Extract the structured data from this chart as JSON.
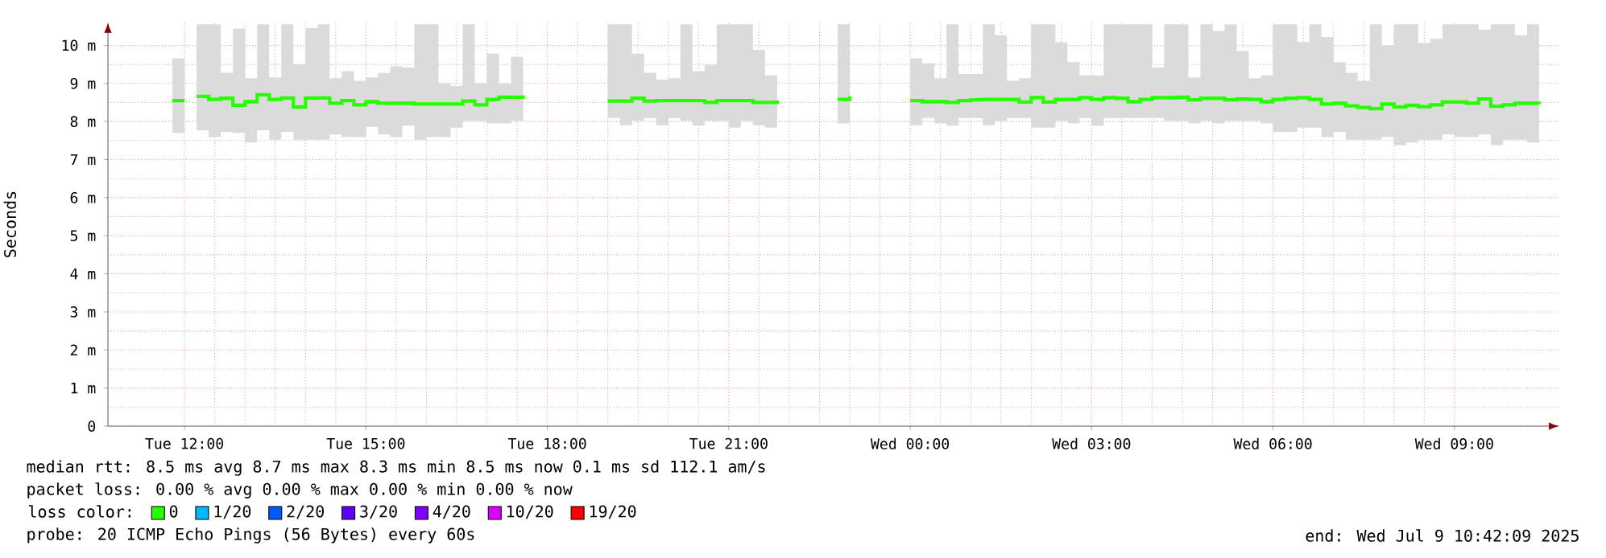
{
  "chart_data": {
    "type": "step",
    "ylabel": "Seconds",
    "legend_title": "loss color:",
    "legend": "bottom",
    "grid": true,
    "xlim": [
      "2025-07-08T10:44",
      "2025-07-09T10:44"
    ],
    "xticks": [
      {
        "value": "2025-07-08T12:00",
        "label": "Tue 12:00"
      },
      {
        "value": "2025-07-08T15:00",
        "label": "Tue 15:00"
      },
      {
        "value": "2025-07-08T18:00",
        "label": "Tue 18:00"
      },
      {
        "value": "2025-07-08T21:00",
        "label": "Tue 21:00"
      },
      {
        "value": "2025-07-09T00:00",
        "label": "Wed 00:00"
      },
      {
        "value": "2025-07-09T03:00",
        "label": "Wed 03:00"
      },
      {
        "value": "2025-07-09T06:00",
        "label": "Wed 06:00"
      },
      {
        "value": "2025-07-09T09:00",
        "label": "Wed 09:00"
      }
    ],
    "ylim": [
      0,
      10.6
    ],
    "yticks": [
      0,
      {
        "value": 1,
        "label": "1 m"
      },
      {
        "value": 2,
        "label": "2 m"
      },
      {
        "value": 3,
        "label": "3 m"
      },
      {
        "value": 4,
        "label": "4 m"
      },
      {
        "value": 5,
        "label": "5 m"
      },
      {
        "value": 6,
        "label": "6 m"
      },
      {
        "value": 7,
        "label": "7 m"
      },
      {
        "value": 8,
        "label": "8 m"
      },
      {
        "value": 9,
        "label": "9 m"
      },
      {
        "value": 10,
        "label": "10 m"
      }
    ],
    "x": [
      "2025-07-08T11:48",
      "2025-07-08T12:00",
      "2025-07-08T12:12",
      "2025-07-08T12:24",
      "2025-07-08T12:36",
      "2025-07-08T12:48",
      "2025-07-08T13:00",
      "2025-07-08T13:12",
      "2025-07-08T13:24",
      "2025-07-08T13:36",
      "2025-07-08T13:48",
      "2025-07-08T14:00",
      "2025-07-08T14:12",
      "2025-07-08T14:24",
      "2025-07-08T14:36",
      "2025-07-08T14:48",
      "2025-07-08T15:00",
      "2025-07-08T15:12",
      "2025-07-08T15:24",
      "2025-07-08T15:36",
      "2025-07-08T15:48",
      "2025-07-08T16:00",
      "2025-07-08T16:12",
      "2025-07-08T16:24",
      "2025-07-08T16:36",
      "2025-07-08T16:48",
      "2025-07-08T17:00",
      "2025-07-08T17:12",
      "2025-07-08T17:24",
      "2025-07-08T17:36",
      "2025-07-08T17:48",
      "2025-07-08T18:00",
      "2025-07-08T18:12",
      "2025-07-08T18:24",
      "2025-07-08T18:36",
      "2025-07-08T18:48",
      "2025-07-08T19:00",
      "2025-07-08T19:12",
      "2025-07-08T19:24",
      "2025-07-08T19:36",
      "2025-07-08T19:48",
      "2025-07-08T20:00",
      "2025-07-08T20:12",
      "2025-07-08T20:24",
      "2025-07-08T20:36",
      "2025-07-08T20:48",
      "2025-07-08T21:00",
      "2025-07-08T21:12",
      "2025-07-08T21:24",
      "2025-07-08T21:36",
      "2025-07-08T21:48",
      "2025-07-08T22:00",
      "2025-07-08T22:12",
      "2025-07-08T22:24",
      "2025-07-08T22:36",
      "2025-07-08T22:48",
      "2025-07-08T23:00",
      "2025-07-08T23:12",
      "2025-07-08T23:24",
      "2025-07-08T23:36",
      "2025-07-08T23:48",
      "2025-07-09T00:00",
      "2025-07-09T00:12",
      "2025-07-09T00:24",
      "2025-07-09T00:36",
      "2025-07-09T00:48",
      "2025-07-09T01:00",
      "2025-07-09T01:12",
      "2025-07-09T01:24",
      "2025-07-09T01:36",
      "2025-07-09T01:48",
      "2025-07-09T02:00",
      "2025-07-09T02:12",
      "2025-07-09T02:24",
      "2025-07-09T02:36",
      "2025-07-09T02:48",
      "2025-07-09T03:00",
      "2025-07-09T03:12",
      "2025-07-09T03:24",
      "2025-07-09T03:36",
      "2025-07-09T03:48",
      "2025-07-09T04:00",
      "2025-07-09T04:12",
      "2025-07-09T04:24",
      "2025-07-09T04:36",
      "2025-07-09T04:48",
      "2025-07-09T05:00",
      "2025-07-09T05:12",
      "2025-07-09T05:24",
      "2025-07-09T05:36",
      "2025-07-09T05:48",
      "2025-07-09T06:00",
      "2025-07-09T06:12",
      "2025-07-09T06:24",
      "2025-07-09T06:36",
      "2025-07-09T06:48",
      "2025-07-09T07:00",
      "2025-07-09T07:12",
      "2025-07-09T07:24",
      "2025-07-09T07:36",
      "2025-07-09T07:48",
      "2025-07-09T08:00",
      "2025-07-09T08:12",
      "2025-07-09T08:24",
      "2025-07-09T08:36",
      "2025-07-09T08:48",
      "2025-07-09T09:00",
      "2025-07-09T09:12",
      "2025-07-09T09:24",
      "2025-07-09T09:36",
      "2025-07-09T09:48",
      "2025-07-09T10:00",
      "2025-07-09T10:12",
      "2025-07-09T10:24"
    ],
    "series": [
      {
        "name": "0",
        "color": "#26ff00",
        "values": [
          8.55,
          null,
          8.66,
          8.58,
          8.61,
          8.43,
          8.52,
          8.7,
          8.58,
          8.62,
          8.38,
          8.62,
          8.62,
          8.48,
          8.55,
          8.44,
          8.52,
          8.48,
          8.48,
          8.48,
          8.46,
          8.46,
          8.46,
          8.46,
          8.54,
          8.44,
          8.58,
          8.64,
          8.64,
          8.6,
          null,
          null,
          null,
          null,
          null,
          null,
          8.54,
          8.54,
          8.61,
          8.54,
          8.55,
          8.55,
          8.55,
          8.55,
          8.5,
          8.55,
          8.55,
          8.55,
          8.5,
          8.5,
          8.55,
          null,
          null,
          null,
          null,
          8.58,
          8.66,
          null,
          null,
          null,
          null,
          8.55,
          8.52,
          8.52,
          8.5,
          8.55,
          8.57,
          8.58,
          8.58,
          8.58,
          8.51,
          8.63,
          8.51,
          8.58,
          8.58,
          8.63,
          8.58,
          8.63,
          8.61,
          8.52,
          8.58,
          8.63,
          8.63,
          8.64,
          8.57,
          8.61,
          8.61,
          8.57,
          8.59,
          8.58,
          8.52,
          8.58,
          8.61,
          8.63,
          8.58,
          8.46,
          8.48,
          8.41,
          8.37,
          8.34,
          8.46,
          8.38,
          8.43,
          8.39,
          8.44,
          8.51,
          8.51,
          8.48,
          8.59,
          8.4,
          8.44,
          8.48,
          8.48,
          8.46
        ],
        "upper": [
          9.66,
          null,
          10.55,
          10.55,
          9.28,
          10.44,
          9.14,
          10.55,
          9.16,
          10.55,
          9.5,
          10.45,
          10.55,
          9.14,
          9.32,
          9.07,
          9.16,
          9.28,
          9.45,
          9.42,
          10.55,
          10.55,
          9.0,
          8.93,
          10.55,
          9.0,
          9.78,
          9.0,
          9.7,
          9.28,
          null,
          null,
          null,
          null,
          null,
          null,
          10.55,
          10.55,
          9.78,
          9.28,
          9.1,
          9.14,
          10.55,
          9.32,
          9.49,
          10.55,
          10.55,
          10.55,
          9.88,
          9.21,
          10.21,
          null,
          null,
          null,
          null,
          10.55,
          9.11,
          null,
          null,
          null,
          null,
          9.66,
          9.53,
          9.14,
          10.55,
          9.25,
          9.25,
          10.55,
          10.27,
          9.07,
          9.14,
          10.55,
          10.55,
          10.08,
          9.56,
          9.21,
          9.21,
          10.55,
          10.55,
          10.55,
          10.55,
          9.42,
          10.55,
          10.55,
          9.16,
          10.55,
          10.38,
          10.55,
          9.85,
          9.14,
          9.21,
          10.55,
          10.55,
          10.09,
          10.55,
          10.22,
          9.56,
          9.28,
          9.07,
          10.55,
          10.0,
          10.55,
          10.55,
          10.06,
          10.17,
          10.55,
          10.55,
          10.55,
          10.41,
          10.55,
          10.55,
          10.27,
          10.55,
          10.55
        ],
        "lower": [
          7.7,
          null,
          7.77,
          7.59,
          7.73,
          7.7,
          7.45,
          7.77,
          7.52,
          7.73,
          7.52,
          7.52,
          7.52,
          7.66,
          7.59,
          7.59,
          7.86,
          7.66,
          7.59,
          7.89,
          7.52,
          7.59,
          7.59,
          7.84,
          8.02,
          8.02,
          7.95,
          7.95,
          8.02,
          8.02,
          null,
          null,
          null,
          null,
          null,
          null,
          8.09,
          7.9,
          8.02,
          8.09,
          7.9,
          8.09,
          8.02,
          7.89,
          8.02,
          8.02,
          7.84,
          8.02,
          7.9,
          7.84,
          8.09,
          null,
          null,
          null,
          null,
          7.95,
          8.02,
          null,
          null,
          null,
          null,
          7.9,
          8.09,
          7.95,
          7.89,
          8.09,
          8.09,
          7.9,
          8.02,
          8.09,
          8.09,
          7.84,
          7.84,
          8.02,
          7.95,
          8.09,
          7.89,
          8.09,
          8.09,
          8.09,
          8.09,
          8.09,
          8.02,
          8.02,
          7.95,
          8.02,
          7.95,
          8.02,
          8.02,
          8.02,
          7.95,
          7.73,
          7.73,
          7.84,
          7.84,
          7.59,
          7.73,
          7.52,
          7.52,
          7.52,
          7.59,
          7.38,
          7.45,
          7.52,
          7.52,
          7.66,
          7.59,
          7.59,
          7.66,
          7.38,
          7.52,
          7.52,
          7.45,
          7.38
        ]
      },
      {
        "name": "1/20",
        "color": "#00b8ff",
        "values": [
          null,
          null,
          null,
          null,
          null,
          null,
          null,
          null,
          null,
          null,
          null,
          null,
          null,
          null,
          null,
          null,
          null,
          null,
          null,
          null,
          null,
          null,
          null,
          null,
          null,
          null,
          null,
          null,
          null,
          null,
          null,
          null,
          null,
          null,
          null,
          null,
          null,
          null,
          null,
          null,
          null,
          null,
          null,
          null,
          null,
          null,
          null,
          null,
          null,
          null,
          null,
          null,
          null,
          null,
          null,
          null,
          null,
          null,
          null,
          null,
          null,
          null,
          null,
          null,
          null,
          null,
          null,
          null,
          null,
          null,
          null,
          null,
          null,
          null,
          null,
          null,
          null,
          null,
          null,
          null,
          null,
          null,
          null,
          null,
          null,
          null,
          null,
          null,
          null,
          null,
          null,
          null,
          null,
          null,
          null,
          null,
          null,
          null,
          null,
          null,
          null,
          null,
          null,
          null,
          null,
          null,
          null,
          null,
          null,
          null,
          null,
          null,
          null,
          null
        ]
      },
      {
        "name": "2/20",
        "color": "#0059ff",
        "values": [
          null,
          null,
          null,
          null,
          null,
          null,
          null,
          null,
          null,
          null,
          null,
          null,
          null,
          null,
          null,
          null,
          null,
          null,
          null,
          null,
          null,
          null,
          null,
          null,
          null,
          null,
          null,
          null,
          null,
          null,
          null,
          null,
          null,
          null,
          null,
          null,
          null,
          null,
          null,
          null,
          null,
          null,
          null,
          null,
          null,
          null,
          null,
          null,
          null,
          null,
          null,
          null,
          null,
          null,
          null,
          null,
          null,
          null,
          null,
          null,
          null,
          null,
          null,
          null,
          null,
          null,
          null,
          null,
          null,
          null,
          null,
          null,
          null,
          null,
          null,
          null,
          null,
          null,
          null,
          null,
          null,
          null,
          null,
          null,
          null,
          null,
          null,
          null,
          null,
          null,
          null,
          null,
          null,
          null,
          null,
          null,
          null,
          null,
          null,
          null,
          null,
          null,
          null,
          null,
          null,
          null,
          null,
          null,
          null,
          null,
          null,
          null,
          null,
          null
        ]
      },
      {
        "name": "3/20",
        "color": "#5e00ff",
        "values": [
          null,
          null,
          null,
          null,
          null,
          null,
          null,
          null,
          null,
          null,
          null,
          null,
          null,
          null,
          null,
          null,
          null,
          null,
          null,
          null,
          null,
          null,
          null,
          null,
          null,
          null,
          null,
          null,
          null,
          null,
          null,
          null,
          null,
          null,
          null,
          null,
          null,
          null,
          null,
          null,
          null,
          null,
          null,
          null,
          null,
          null,
          null,
          null,
          null,
          null,
          null,
          null,
          null,
          null,
          null,
          null,
          null,
          null,
          null,
          null,
          null,
          null,
          null,
          null,
          null,
          null,
          null,
          null,
          null,
          null,
          null,
          null,
          null,
          null,
          null,
          null,
          null,
          null,
          null,
          null,
          null,
          null,
          null,
          null,
          null,
          null,
          null,
          null,
          null,
          null,
          null,
          null,
          null,
          null,
          null,
          null,
          null,
          null,
          null,
          null,
          null,
          null,
          null,
          null,
          null,
          null,
          null,
          null,
          null,
          null,
          null,
          null,
          null,
          null
        ]
      },
      {
        "name": "4/20",
        "color": "#7e00ff",
        "values": [
          null,
          null,
          null,
          null,
          null,
          null,
          null,
          null,
          null,
          null,
          null,
          null,
          null,
          null,
          null,
          null,
          null,
          null,
          null,
          null,
          null,
          null,
          null,
          null,
          null,
          null,
          null,
          null,
          null,
          null,
          null,
          null,
          null,
          null,
          null,
          null,
          null,
          null,
          null,
          null,
          null,
          null,
          null,
          null,
          null,
          null,
          null,
          null,
          null,
          null,
          null,
          null,
          null,
          null,
          null,
          null,
          null,
          null,
          null,
          null,
          null,
          null,
          null,
          null,
          null,
          null,
          null,
          null,
          null,
          null,
          null,
          null,
          null,
          null,
          null,
          null,
          null,
          null,
          null,
          null,
          null,
          null,
          null,
          null,
          null,
          null,
          null,
          null,
          null,
          null,
          null,
          null,
          null,
          null,
          null,
          null,
          null,
          null,
          null,
          null,
          null,
          null,
          null,
          null,
          null,
          null,
          null,
          null,
          null,
          null,
          null,
          null,
          null,
          null
        ]
      },
      {
        "name": "10/20",
        "color": "#dd00ff",
        "values": [
          null,
          null,
          null,
          null,
          null,
          null,
          null,
          null,
          null,
          null,
          null,
          null,
          null,
          null,
          null,
          null,
          null,
          null,
          null,
          null,
          null,
          null,
          null,
          null,
          null,
          null,
          null,
          null,
          null,
          null,
          null,
          null,
          null,
          null,
          null,
          null,
          null,
          null,
          null,
          null,
          null,
          null,
          null,
          null,
          null,
          null,
          null,
          null,
          null,
          null,
          null,
          null,
          null,
          null,
          null,
          null,
          null,
          null,
          null,
          null,
          null,
          null,
          null,
          null,
          null,
          null,
          null,
          null,
          null,
          null,
          null,
          null,
          null,
          null,
          null,
          null,
          null,
          null,
          null,
          null,
          null,
          null,
          null,
          null,
          null,
          null,
          null,
          null,
          null,
          null,
          null,
          null,
          null,
          null,
          null,
          null,
          null,
          null,
          null,
          null,
          null,
          null,
          null,
          null,
          null,
          null,
          null,
          null,
          null,
          null,
          null,
          null,
          null,
          null
        ]
      },
      {
        "name": "19/20",
        "color": "#ff0000",
        "values": [
          null,
          null,
          null,
          null,
          null,
          null,
          null,
          null,
          null,
          null,
          null,
          null,
          null,
          null,
          null,
          null,
          null,
          null,
          null,
          null,
          null,
          null,
          null,
          null,
          null,
          null,
          null,
          null,
          null,
          null,
          null,
          null,
          null,
          null,
          null,
          null,
          null,
          null,
          null,
          null,
          null,
          null,
          null,
          null,
          null,
          null,
          null,
          null,
          null,
          null,
          null,
          null,
          null,
          null,
          null,
          null,
          null,
          null,
          null,
          null,
          null,
          null,
          null,
          null,
          null,
          null,
          null,
          null,
          null,
          null,
          null,
          null,
          null,
          null,
          null,
          null,
          null,
          null,
          null,
          null,
          null,
          null,
          null,
          null,
          null,
          null,
          null,
          null,
          null,
          null,
          null,
          null,
          null,
          null,
          null,
          null,
          null,
          null,
          null,
          null,
          null,
          null,
          null,
          null,
          null,
          null,
          null,
          null,
          null,
          null,
          null,
          null,
          null,
          null
        ]
      }
    ],
    "annotations": [
      "median rtt:  8.5 ms avg  8.7 ms max  8.3 ms min  8.5 ms now  0.1 ms sd  112.1   am/s",
      "packet loss: 0.00 % avg  0.00 % max  0.00 % min  0.00 % now",
      "probe:       20 ICMP Echo Pings (56 Bytes) every 60s",
      "end: Wed Jul  9 10:42:09 2025"
    ]
  }
}
